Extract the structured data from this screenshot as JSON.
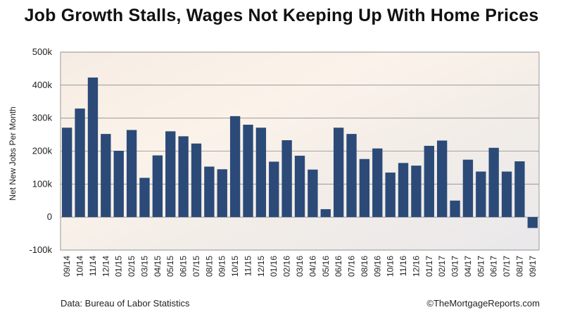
{
  "chart_data": {
    "type": "bar",
    "title": "Job Growth Stalls, Wages Not Keeping Up With Home Prices",
    "ylabel": "Net New Jobs Per Month",
    "xlabel": "",
    "ylim": [
      -100,
      500
    ],
    "yticks": [
      -100,
      0,
      100,
      200,
      300,
      400,
      500
    ],
    "ytick_labels": [
      "-100k",
      "0",
      "100k",
      "200k",
      "300k",
      "400k",
      "500k"
    ],
    "grid": true,
    "bar_color": "#2b4a78",
    "categories": [
      "09/14",
      "10/14",
      "11/14",
      "12/14",
      "01/15",
      "02/15",
      "03/15",
      "04/15",
      "05/15",
      "06/15",
      "07/15",
      "08/15",
      "09/15",
      "10/15",
      "11/15",
      "12/15",
      "01/16",
      "02/16",
      "03/16",
      "04/16",
      "05/16",
      "06/16",
      "07/16",
      "08/16",
      "09/16",
      "10/16",
      "11/16",
      "12/16",
      "01/17",
      "02/17",
      "03/17",
      "04/17",
      "05/17",
      "06/17",
      "07/17",
      "08/17",
      "09/17"
    ],
    "values": [
      271,
      329,
      423,
      252,
      201,
      264,
      119,
      187,
      260,
      245,
      223,
      153,
      145,
      306,
      280,
      271,
      168,
      233,
      186,
      144,
      24,
      271,
      252,
      176,
      208,
      135,
      164,
      156,
      216,
      232,
      50,
      174,
      138,
      210,
      138,
      169,
      -33
    ]
  },
  "footer": {
    "source": "Data: Bureau of Labor Statistics",
    "credit": "©TheMortgageReports.com"
  }
}
